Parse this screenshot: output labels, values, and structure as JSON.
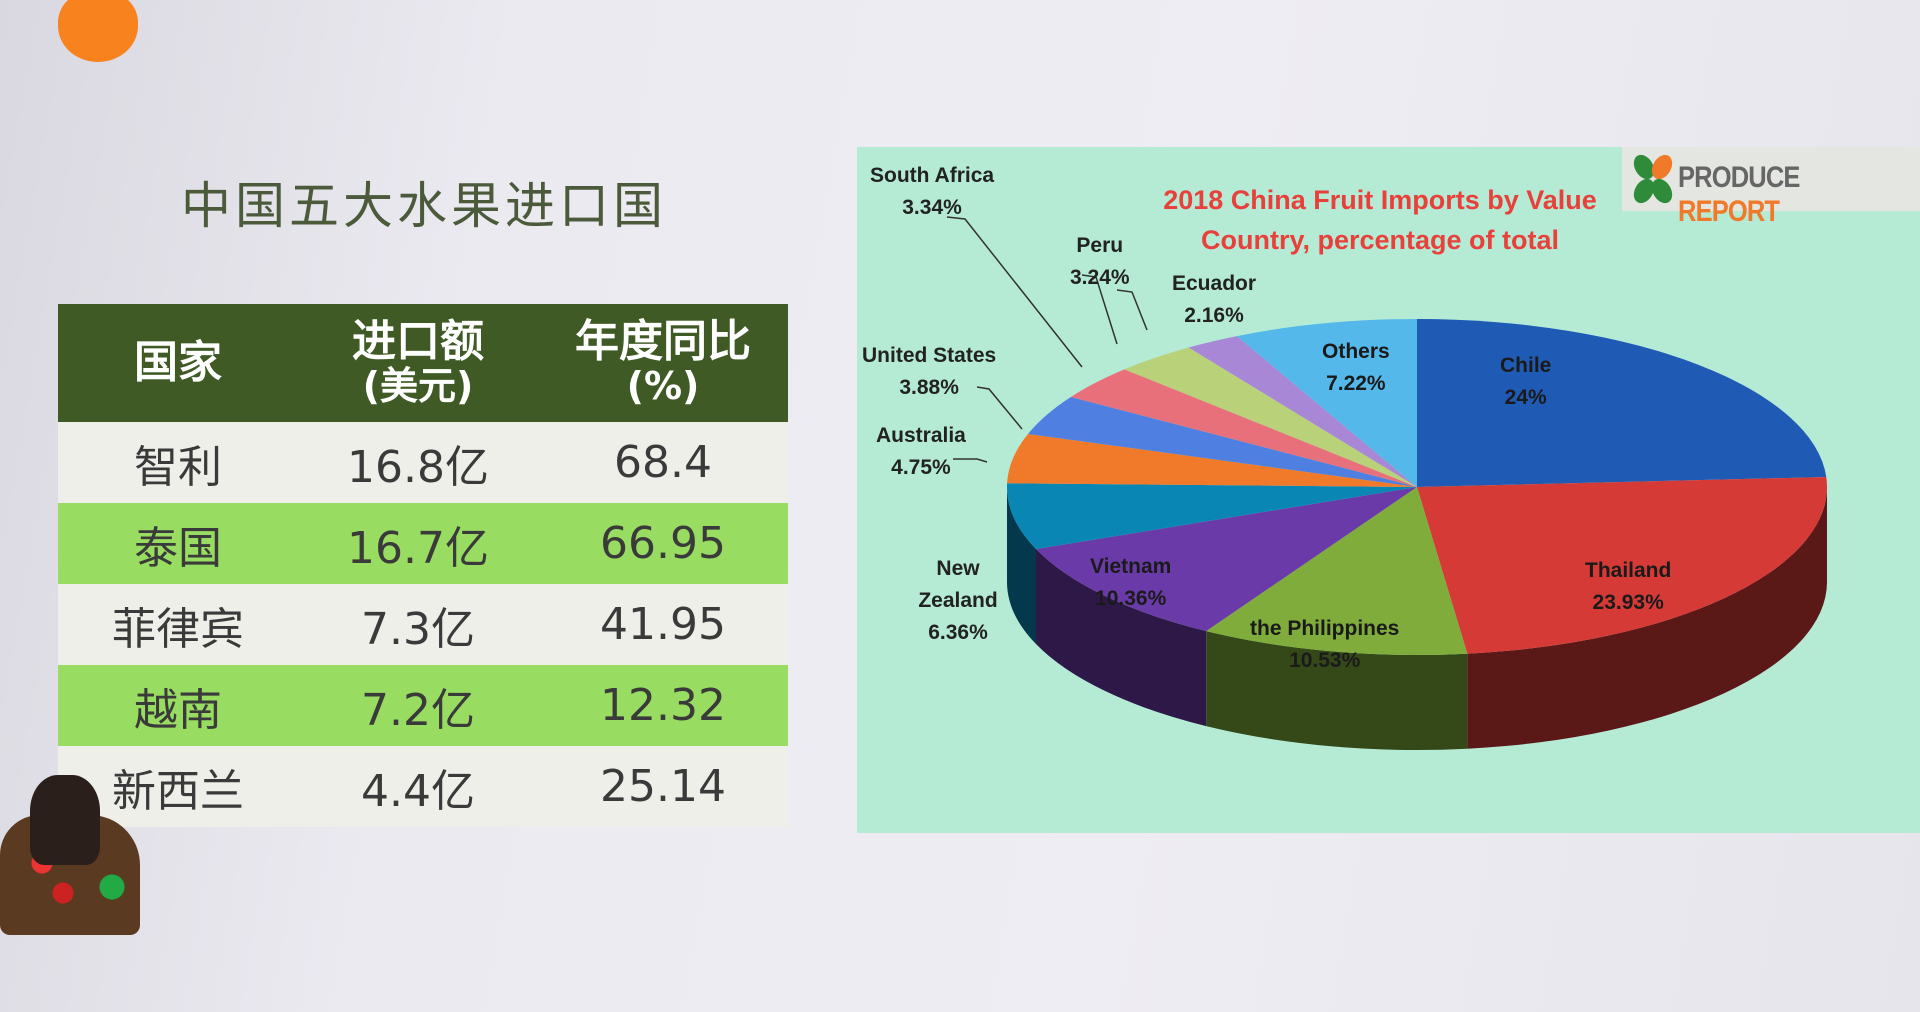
{
  "slide": {
    "title": "中国五大水果进口国",
    "accent_color": "#f7821e"
  },
  "table": {
    "headers": [
      {
        "main": "国家",
        "sub": ""
      },
      {
        "main": "进口额",
        "sub": "(美元)"
      },
      {
        "main": "年度同比",
        "sub": "(%)"
      }
    ],
    "rows": [
      [
        "智利",
        "16.8亿",
        "68.4"
      ],
      [
        "泰国",
        "16.7亿",
        "66.95"
      ],
      [
        "菲律宾",
        "7.3亿",
        "41.95"
      ],
      [
        "越南",
        "7.2亿",
        "12.32"
      ],
      [
        "新西兰",
        "4.4亿",
        "25.14"
      ]
    ],
    "colors": {
      "header": "#3f5a24",
      "row_light": "#efefe9",
      "row_green": "#98dc62"
    }
  },
  "chart_data": {
    "type": "pie",
    "style": "3d",
    "title": "2018 China Fruit Imports by Value",
    "subtitle": "Country, percentage of total",
    "logo": {
      "text_1": "PRODUCE",
      "text_2": "REPORT"
    },
    "background": "#b5ebd5",
    "slices": [
      {
        "name": "Chile",
        "value": 24,
        "label": "24%",
        "color": "#1f5bb5"
      },
      {
        "name": "Thailand",
        "value": 23.93,
        "label": "23.93%",
        "color": "#d63a36"
      },
      {
        "name": "the Philippines",
        "value": 10.53,
        "label": "10.53%",
        "color": "#7fac3a"
      },
      {
        "name": "Vietnam",
        "value": 10.36,
        "label": "10.36%",
        "color": "#6a3aa8"
      },
      {
        "name": "New Zealand",
        "value": 6.36,
        "label": "6.36%",
        "color": "#0a86b5"
      },
      {
        "name": "Australia",
        "value": 4.75,
        "label": "4.75%",
        "color": "#f07a2a"
      },
      {
        "name": "United States",
        "value": 3.88,
        "label": "3.88%",
        "color": "#4f7fe0"
      },
      {
        "name": "South Africa",
        "value": 3.34,
        "label": "3.34%",
        "color": "#e8707a"
      },
      {
        "name": "Peru",
        "value": 3.24,
        "label": "3.24%",
        "color": "#b9d27a"
      },
      {
        "name": "Ecuador",
        "value": 2.16,
        "label": "2.16%",
        "color": "#a887d6"
      },
      {
        "name": "Others",
        "value": 7.22,
        "label": "7.22%",
        "color": "#55b8ea"
      }
    ]
  }
}
